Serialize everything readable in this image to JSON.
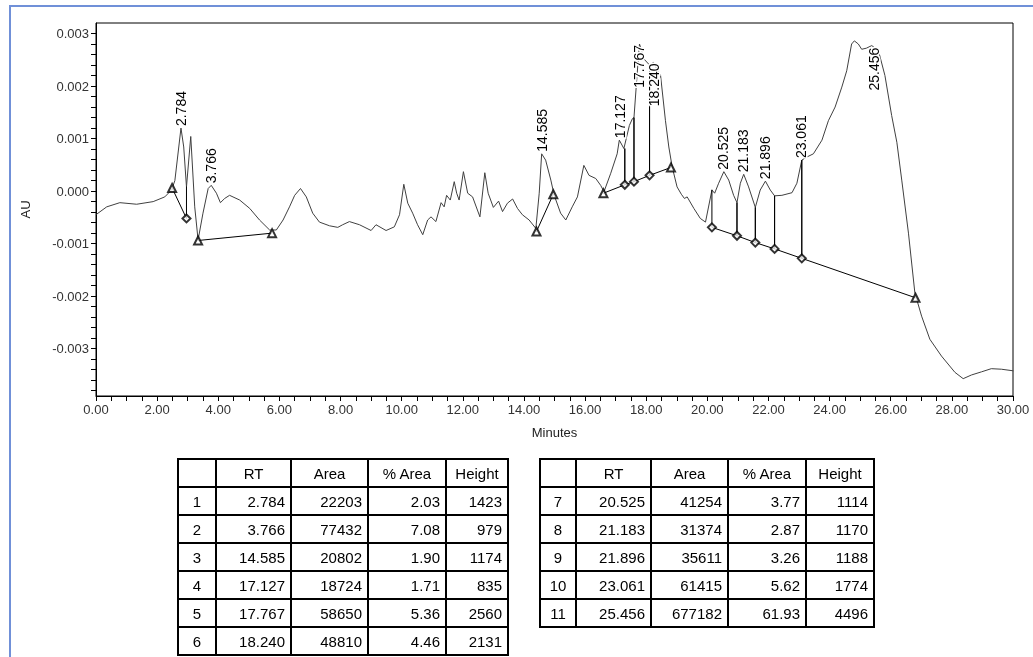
{
  "chart_data": [
    {
      "type": "line",
      "xlabel": "Minutes",
      "ylabel": "AU",
      "xlim": [
        0,
        30
      ],
      "ylim": [
        -0.0039,
        0.0032
      ],
      "xticks": [
        {
          "value": 0,
          "label": "0.00"
        },
        {
          "value": 0.5,
          "label": null
        },
        {
          "value": 1,
          "label": null
        },
        {
          "value": 1.5,
          "label": null
        },
        {
          "value": 2,
          "label": "2.00"
        },
        {
          "value": 2.5,
          "label": null
        },
        {
          "value": 3,
          "label": null
        },
        {
          "value": 3.5,
          "label": null
        },
        {
          "value": 4,
          "label": "4.00"
        },
        {
          "value": 4.5,
          "label": null
        },
        {
          "value": 5,
          "label": null
        },
        {
          "value": 5.5,
          "label": null
        },
        {
          "value": 6,
          "label": "6.00"
        },
        {
          "value": 6.5,
          "label": null
        },
        {
          "value": 7,
          "label": null
        },
        {
          "value": 7.5,
          "label": null
        },
        {
          "value": 8,
          "label": "8.00"
        },
        {
          "value": 8.5,
          "label": null
        },
        {
          "value": 9,
          "label": null
        },
        {
          "value": 9.5,
          "label": null
        },
        {
          "value": 10,
          "label": "10.00"
        },
        {
          "value": 10.5,
          "label": null
        },
        {
          "value": 11,
          "label": null
        },
        {
          "value": 11.5,
          "label": null
        },
        {
          "value": 12,
          "label": "12.00"
        },
        {
          "value": 12.5,
          "label": null
        },
        {
          "value": 13,
          "label": null
        },
        {
          "value": 13.5,
          "label": null
        },
        {
          "value": 14,
          "label": "14.00"
        },
        {
          "value": 14.5,
          "label": null
        },
        {
          "value": 15,
          "label": null
        },
        {
          "value": 15.5,
          "label": null
        },
        {
          "value": 16,
          "label": "16.00"
        },
        {
          "value": 16.5,
          "label": null
        },
        {
          "value": 17,
          "label": null
        },
        {
          "value": 17.5,
          "label": null
        },
        {
          "value": 18,
          "label": "18.00"
        },
        {
          "value": 18.5,
          "label": null
        },
        {
          "value": 19,
          "label": null
        },
        {
          "value": 19.5,
          "label": null
        },
        {
          "value": 20,
          "label": "20.00"
        },
        {
          "value": 20.5,
          "label": null
        },
        {
          "value": 21,
          "label": null
        },
        {
          "value": 21.5,
          "label": null
        },
        {
          "value": 22,
          "label": "22.00"
        },
        {
          "value": 22.5,
          "label": null
        },
        {
          "value": 23,
          "label": null
        },
        {
          "value": 23.5,
          "label": null
        },
        {
          "value": 24,
          "label": "24.00"
        },
        {
          "value": 24.5,
          "label": null
        },
        {
          "value": 25,
          "label": null
        },
        {
          "value": 25.5,
          "label": null
        },
        {
          "value": 26,
          "label": "26.00"
        },
        {
          "value": 26.5,
          "label": null
        },
        {
          "value": 27,
          "label": null
        },
        {
          "value": 27.5,
          "label": null
        },
        {
          "value": 28,
          "label": "28.00"
        },
        {
          "value": 28.5,
          "label": null
        },
        {
          "value": 29,
          "label": null
        },
        {
          "value": 29.5,
          "label": null
        },
        {
          "value": 30,
          "label": "30.00"
        }
      ],
      "yticks": [
        {
          "value": -0.0038,
          "label": null
        },
        {
          "value": -0.0036,
          "label": null
        },
        {
          "value": -0.0034,
          "label": null
        },
        {
          "value": -0.0032,
          "label": null
        },
        -0.003,
        {
          "value": -0.0028,
          "label": null
        },
        {
          "value": -0.0026,
          "label": null
        },
        {
          "value": -0.0024,
          "label": null
        },
        {
          "value": -0.0022,
          "label": null
        },
        -0.002,
        {
          "value": -0.0018,
          "label": null
        },
        {
          "value": -0.0016,
          "label": null
        },
        {
          "value": -0.0014,
          "label": null
        },
        {
          "value": -0.0012,
          "label": null
        },
        -0.001,
        {
          "value": -0.0008,
          "label": null
        },
        {
          "value": -0.0006,
          "label": null
        },
        {
          "value": -0.0004,
          "label": null
        },
        {
          "value": -0.0002,
          "label": null
        },
        {
          "value": 0,
          "label": "0.000"
        },
        {
          "value": 0.0002,
          "label": null
        },
        {
          "value": 0.0004,
          "label": null
        },
        {
          "value": 0.0006,
          "label": null
        },
        {
          "value": 0.0008,
          "label": null
        },
        0.001,
        {
          "value": 0.0012,
          "label": null
        },
        {
          "value": 0.0014,
          "label": null
        },
        {
          "value": 0.0016,
          "label": null
        },
        {
          "value": 0.0018,
          "label": null
        },
        0.002,
        {
          "value": 0.0022,
          "label": null
        },
        {
          "value": 0.0024,
          "label": null
        },
        {
          "value": 0.0026,
          "label": null
        },
        {
          "value": 0.0028,
          "label": null
        },
        0.003
      ],
      "series": [
        {
          "type": "line",
          "marker": "none",
          "color": "#404040",
          "x": [
            0.02,
            0.35,
            0.78,
            1.33,
            1.87,
            2.25,
            2.47,
            2.58,
            2.78,
            2.87,
            2.96,
            3.1,
            3.23,
            3.34,
            3.5,
            3.67,
            3.77,
            3.94,
            4.07,
            4.21,
            4.37,
            4.7,
            5.03,
            5.35,
            5.68,
            5.9,
            6.12,
            6.33,
            6.5,
            6.69,
            6.88,
            7.09,
            7.31,
            7.64,
            7.91,
            8.07,
            8.29,
            8.62,
            9,
            9.16,
            9.49,
            9.76,
            9.93,
            10.07,
            10.2,
            10.36,
            10.52,
            10.69,
            10.85,
            10.96,
            11.12,
            11.29,
            11.39,
            11.47,
            11.59,
            11.72,
            11.8,
            11.88,
            12.02,
            12.16,
            12.32,
            12.56,
            12.72,
            12.83,
            13,
            13.17,
            13.3,
            13.46,
            13.63,
            13.79,
            13.95,
            14.17,
            14.39,
            14.5,
            14.58,
            14.71,
            14.88,
            14.99,
            15.2,
            15.37,
            15.58,
            15.75,
            15.96,
            16.13,
            16.35,
            16.51,
            16.62,
            16.84,
            17.05,
            17.12,
            17.27,
            17.45,
            17.55,
            17.6,
            17.7,
            17.78,
            17.95,
            18.11,
            18.24,
            18.47,
            18.63,
            18.74,
            18.85,
            19.01,
            19.15,
            19.25,
            19.34,
            19.56,
            19.77,
            19.94,
            20.15,
            20.24,
            20.37,
            20.54,
            20.7,
            20.86,
            20.97,
            21.08,
            21.19,
            21.35,
            21.57,
            21.73,
            21.9,
            22.06,
            22.2,
            22.44,
            22.77,
            22.93,
            23.09,
            23.26,
            23.47,
            23.75,
            23.96,
            24.18,
            24.4,
            24.56,
            24.72,
            24.81,
            24.94,
            25.05,
            25.2,
            25.38,
            25.6,
            25.81,
            26.03,
            26.2,
            26.36,
            26.58,
            26.79,
            27.01,
            27.28,
            27.66,
            28.1,
            28.37,
            28.64,
            28.97,
            29.29,
            29.62,
            30
          ],
          "values": [
            -0.00044,
            -0.0003,
            -0.00022,
            -0.00025,
            -0.0002,
            -0.00011,
            2e-05,
            0.0002,
            0.0012,
            0.00084,
            8e-05,
            0.00104,
            -0.0003,
            -0.00093,
            -0.00042,
            5e-05,
            0.00011,
            -4e-05,
            -0.00022,
            -0.00014,
            -8e-05,
            -0.00017,
            -0.00033,
            -0.00055,
            -0.00074,
            -0.00074,
            -0.00055,
            -0.0003,
            -8e-05,
            5e-05,
            -0.00011,
            -0.00042,
            -0.00059,
            -0.00066,
            -0.00069,
            -0.00064,
            -0.00058,
            -0.00064,
            -0.00075,
            -0.00064,
            -0.00075,
            -0.00068,
            -0.00045,
            0.00013,
            -0.00023,
            -0.00042,
            -0.00064,
            -0.00083,
            -0.00055,
            -0.00049,
            -0.00058,
            -0.00022,
            -0.0003,
            -8e-05,
            -0.00017,
            0.00018,
            -4e-05,
            -0.00017,
            0.00037,
            -4e-05,
            -0.00011,
            -0.00049,
            0.00035,
            -4e-05,
            -0.00031,
            -0.00019,
            -0.00039,
            -0.00023,
            -0.00015,
            -0.00033,
            -0.00045,
            -0.00055,
            -0.00071,
            -4e-05,
            0.00071,
            0.00059,
            0.00021,
            -8e-05,
            -0.00042,
            -0.00055,
            -0.0003,
            -0.00011,
            0.00049,
            0.0003,
            0.00024,
            0.00011,
            -1e-05,
            0.00034,
            0.00071,
            0.00097,
            0.00081,
            0.00125,
            0.00138,
            0.0014,
            0.0022,
            0.0028,
            0.0025,
            0.0024,
            0.00245,
            0.0022,
            0.00134,
            0.00084,
            0.00046,
            8e-05,
            -6e-05,
            -0.00014,
            -0.00011,
            -0.00033,
            -0.00052,
            -0.00059,
            2e-05,
            -4e-05,
            0.00015,
            0.00037,
            0.00021,
            -8e-05,
            -0.00022,
            0.00015,
            0.00032,
            8e-05,
            -0.00031,
            2e-05,
            0.00019,
            2e-05,
            -9e-05,
            -8e-05,
            -3e-05,
            0.00015,
            0.00059,
            0.00065,
            0.00071,
            0.00097,
            0.00134,
            0.0016,
            0.00198,
            0.00229,
            0.0028,
            0.00286,
            0.0028,
            0.0027,
            0.00272,
            0.00277,
            0.00267,
            0.0022,
            0.00144,
            0.00093,
            0.00021,
            -0.0008,
            -0.00194,
            -0.00238,
            -0.00282,
            -0.00314,
            -0.00345,
            -0.00357,
            -0.0035,
            -0.00344,
            -0.00338,
            -0.00339,
            -0.00342
          ]
        },
        {
          "type": "line",
          "marker": "none",
          "color": "#000000",
          "x": [
            2.49,
            2.96,
            2.96
          ],
          "values": [
            6e-05,
            -0.00052,
            8e-05
          ]
        },
        {
          "type": "line",
          "marker": "none",
          "color": "#000000",
          "x": [
            3.34,
            5.76
          ],
          "values": [
            -0.00094,
            -0.0008
          ]
        },
        {
          "type": "line",
          "marker": "none",
          "color": "#000000",
          "x": [
            14.41,
            14.96
          ],
          "values": [
            -0.00077,
            -6e-05
          ]
        },
        {
          "type": "line",
          "marker": "none",
          "color": "#000000",
          "x": [
            16.6,
            17.3,
            17.3,
            17.3,
            17.6,
            17.6,
            17.6,
            18.11,
            18.11,
            18.11,
            18.81
          ],
          "values": [
            -4e-05,
            0.00012,
            0.00081,
            0.00012,
            0.00018,
            0.0014,
            0.00018,
            0.0003,
            0.0024,
            0.0003,
            0.00045
          ]
        },
        {
          "type": "line",
          "marker": "none",
          "color": "#000000",
          "x": [
            20.15,
            20.15,
            20.97,
            20.97,
            20.97,
            21.57,
            21.57,
            21.57,
            22.2,
            22.2,
            22.2,
            23.09,
            23.09,
            23.09,
            26.81
          ],
          "values": [
            2e-05,
            -0.00069,
            -0.00085,
            -0.00022,
            -0.00085,
            -0.00098,
            -0.00031,
            -0.00098,
            -0.0011,
            -9e-05,
            -0.0011,
            -0.00128,
            0.00059,
            -0.00128,
            -0.00203
          ]
        },
        {
          "type": "scatter",
          "marker": "triangle",
          "color": "#000000",
          "x": [
            2.49,
            3.34,
            5.76,
            14.41,
            14.96,
            16.6,
            18.81,
            26.81
          ],
          "values": [
            6e-05,
            -0.00094,
            -0.0008,
            -0.00077,
            -6e-05,
            -4e-05,
            0.00045,
            -0.00203
          ]
        },
        {
          "type": "scatter",
          "marker": "diamond",
          "color": "#000000",
          "x": [
            2.96,
            17.3,
            17.6,
            18.11,
            20.15,
            20.97,
            21.57,
            22.2,
            23.09
          ],
          "values": [
            -0.00052,
            0.00012,
            0.00018,
            0.0003,
            -0.00069,
            -0.00085,
            -0.00098,
            -0.0011,
            -0.00128
          ]
        }
      ],
      "annotations": [
        {
          "text": "2.784",
          "x": 2.784,
          "y": 0.0012
        },
        {
          "text": "3.766",
          "x": 3.766,
          "y": 0.00011
        },
        {
          "text": "14.585",
          "x": 14.585,
          "y": 0.00071
        },
        {
          "text": "17.127",
          "x": 17.127,
          "y": 0.00097
        },
        {
          "text": "17.767",
          "x": 17.767,
          "y": 0.0028
        },
        {
          "text": "18.240",
          "x": 18.24,
          "y": 0.00245
        },
        {
          "text": "20.525",
          "x": 20.525,
          "y": 0.00037
        },
        {
          "text": "21.183",
          "x": 21.183,
          "y": 0.00032
        },
        {
          "text": "21.896",
          "x": 21.896,
          "y": 0.00019
        },
        {
          "text": "23.061",
          "x": 23.061,
          "y": 0.00059
        },
        {
          "text": "25.456",
          "x": 25.456,
          "y": 0.00275
        }
      ]
    },
    {
      "type": "heatmap",
      "data_labels": true,
      "categories": [
        "RT",
        "Area",
        "% Area",
        "Height"
      ],
      "y_categories": [
        "1",
        "2",
        "3",
        "4",
        "5",
        "6"
      ],
      "cells": [
        [
          2.784,
          22203,
          2.03,
          1423
        ],
        [
          3.766,
          77432,
          7.08,
          979
        ],
        [
          14.585,
          20802,
          1.9,
          1174
        ],
        [
          17.127,
          18724,
          1.71,
          835
        ],
        [
          17.767,
          58650,
          5.36,
          2560
        ],
        [
          18.24,
          48810,
          4.46,
          2131
        ]
      ],
      "cell_labels": [
        [
          "2.784",
          "22203",
          "2.03",
          "1423"
        ],
        [
          "3.766",
          "77432",
          "7.08",
          "979"
        ],
        [
          "14.585",
          "20802",
          "1.90",
          "1174"
        ],
        [
          "17.127",
          "18724",
          "1.71",
          "835"
        ],
        [
          "17.767",
          "58650",
          "5.36",
          "2560"
        ],
        [
          "18.240",
          "48810",
          "4.46",
          "2131"
        ]
      ]
    },
    {
      "type": "heatmap",
      "data_labels": true,
      "categories": [
        "RT",
        "Area",
        "% Area",
        "Height"
      ],
      "y_categories": [
        "7",
        "8",
        "9",
        "10",
        "11"
      ],
      "cells": [
        [
          20.525,
          41254,
          3.77,
          1114
        ],
        [
          21.183,
          31374,
          2.87,
          1170
        ],
        [
          21.896,
          35611,
          3.26,
          1188
        ],
        [
          23.061,
          61415,
          5.62,
          1774
        ],
        [
          25.456,
          677182,
          61.93,
          4496
        ]
      ]
    }
  ]
}
